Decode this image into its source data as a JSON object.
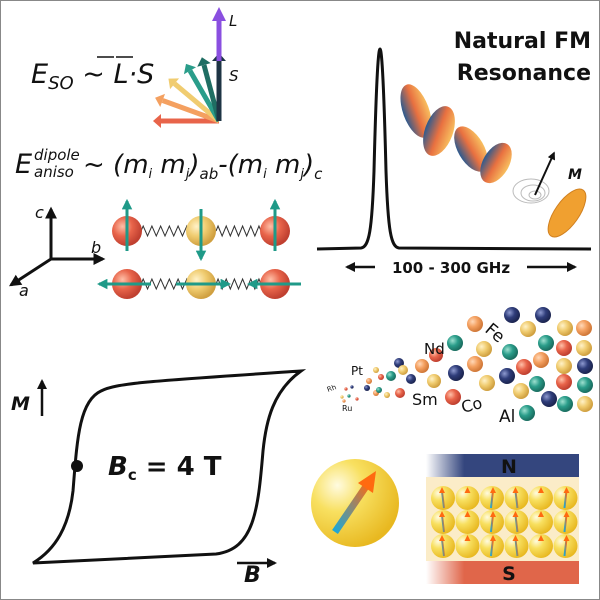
{
  "spin_orbit": {
    "lhs": "E",
    "lhs_sub": "SO",
    "tilde": " ~ ",
    "L": "L",
    "dot": "·",
    "S": "S",
    "vector_L_label": "L",
    "vector_S_label": "S",
    "arrow_colors": [
      "#e8644a",
      "#f4a060",
      "#f0cc70",
      "#2a9d8a",
      "#1f6e63",
      "#1e3444"
    ],
    "L_color": "#8a4fe0"
  },
  "dipole": {
    "lhs": "E",
    "sup": "dipole",
    "sub": "aniso",
    "rhs_1": "~ (m",
    "i1": "i",
    "m2": " m",
    "j1": "j",
    "close1": ")",
    "ab": "ab",
    "rhs_2": "-(m",
    "i2": "i",
    "m4": " m",
    "j2": "j",
    "close2": ")",
    "c": "c"
  },
  "axes": {
    "c": "c",
    "b": "b",
    "a": "a"
  },
  "resonance": {
    "title_line1": "Natural FM",
    "title_line2": "Resonance",
    "range_label": "100 - 300 GHz",
    "magnetization_label": "M"
  },
  "hysteresis": {
    "y_label": "M",
    "x_label": "B",
    "coercivity_symbol": "B",
    "coercivity_sub": "c",
    "coercivity_value": " = 4 T"
  },
  "elements": [
    "Nd",
    "Pt",
    "Rh",
    "Ru",
    "Sm",
    "Co",
    "Fe",
    "Al"
  ],
  "magnet": {
    "north": "N",
    "south": "S",
    "north_color": "#34467e",
    "south_color": "#e0664a"
  },
  "palette": {
    "red": "#e8644a",
    "yellow": "#f0cc70",
    "teal": "#2a9d8a",
    "navy": "#2f3d7a",
    "orange": "#f4a060"
  }
}
